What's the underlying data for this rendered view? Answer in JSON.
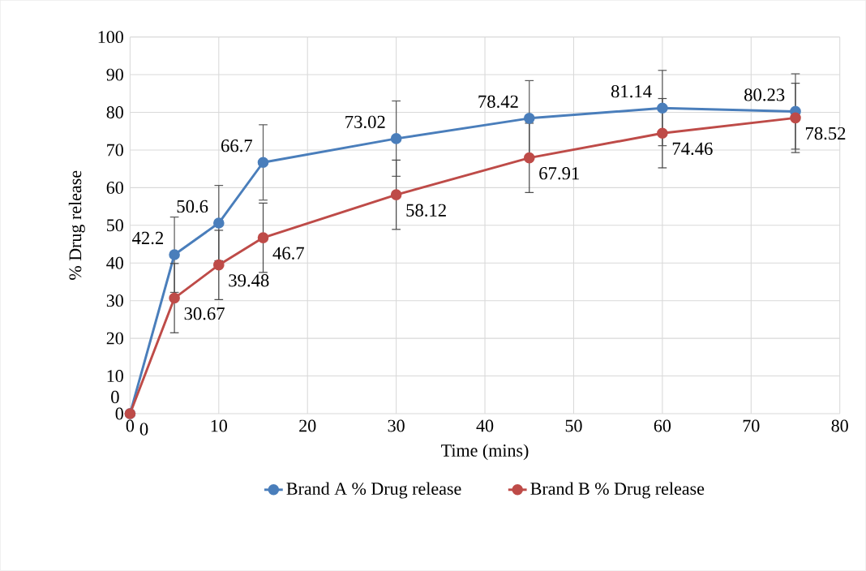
{
  "chart_data": {
    "type": "line",
    "xlabel": "Time (mins)",
    "ylabel": "% Drug release",
    "x": [
      0,
      5,
      10,
      15,
      30,
      45,
      60,
      75
    ],
    "series": [
      {
        "name": "Brand A % Drug release",
        "color": "#4a7ebb",
        "values": [
          0,
          42.2,
          50.6,
          66.7,
          73.02,
          78.42,
          81.14,
          80.23
        ],
        "errors": [
          null,
          10,
          10,
          10,
          10,
          10,
          10,
          10
        ]
      },
      {
        "name": "Brand B % Drug release",
        "color": "#be4b48",
        "values": [
          0,
          30.67,
          39.48,
          46.7,
          58.12,
          67.91,
          74.46,
          78.52
        ],
        "errors": [
          null,
          9.2,
          9.2,
          9.2,
          9.2,
          9.2,
          9.2,
          9.2
        ]
      }
    ],
    "xlim": [
      0,
      80
    ],
    "xticks": [
      0,
      10,
      20,
      30,
      40,
      50,
      60,
      70,
      80
    ],
    "ylim": [
      0,
      100
    ],
    "yticks": [
      0,
      10,
      20,
      30,
      40,
      50,
      60,
      70,
      80,
      90,
      100
    ],
    "grid": true,
    "legend": "bottom",
    "marker": "circle",
    "line_style": "solid",
    "data_labels": true
  }
}
